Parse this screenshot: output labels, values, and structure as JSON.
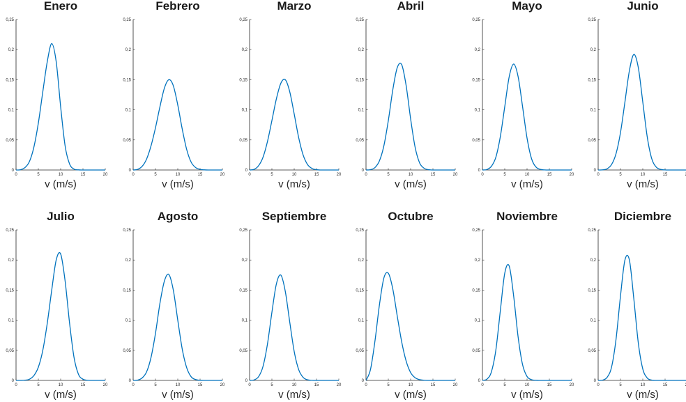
{
  "chart_data": {
    "type": "line",
    "xlabel": "v (m/s)",
    "xlim": [
      0,
      20
    ],
    "ylim": [
      0,
      0.25
    ],
    "x_ticks": [
      0,
      5,
      10,
      15,
      20
    ],
    "y_ticks": [
      0,
      0.05,
      0.1,
      0.15,
      0.2,
      0.25
    ],
    "y_tick_labels": [
      "0",
      "0,05",
      "0,1",
      "0,15",
      "0,2",
      "0,25"
    ],
    "line_color": "#0072BD",
    "grid": false,
    "legend": "none",
    "x": [
      0,
      1,
      2,
      3,
      4,
      5,
      6,
      7,
      8,
      9,
      10,
      11,
      12,
      13,
      14,
      15,
      16,
      17,
      18,
      19,
      20
    ],
    "panels": [
      {
        "title": "Enero",
        "values": [
          0,
          0.0005,
          0.004,
          0.014,
          0.038,
          0.078,
          0.13,
          0.18,
          0.21,
          0.18,
          0.105,
          0.04,
          0.01,
          0.0015,
          0.0002,
          0,
          0,
          0,
          0,
          0,
          0
        ]
      },
      {
        "title": "Febrero",
        "values": [
          0,
          0.001,
          0.006,
          0.018,
          0.04,
          0.07,
          0.105,
          0.136,
          0.15,
          0.14,
          0.108,
          0.068,
          0.034,
          0.013,
          0.004,
          0.001,
          0.0002,
          0,
          0,
          0,
          0
        ]
      },
      {
        "title": "Marzo",
        "values": [
          0,
          0.001,
          0.007,
          0.021,
          0.047,
          0.082,
          0.118,
          0.144,
          0.15,
          0.13,
          0.093,
          0.054,
          0.025,
          0.009,
          0.0025,
          0.0005,
          0,
          0,
          0,
          0,
          0
        ]
      },
      {
        "title": "Abril",
        "values": [
          0,
          0.0006,
          0.004,
          0.015,
          0.04,
          0.082,
          0.133,
          0.17,
          0.175,
          0.14,
          0.085,
          0.038,
          0.012,
          0.003,
          0.0005,
          0,
          0,
          0,
          0,
          0,
          0
        ]
      },
      {
        "title": "Mayo",
        "values": [
          0,
          0.0008,
          0.006,
          0.021,
          0.055,
          0.105,
          0.155,
          0.176,
          0.155,
          0.105,
          0.053,
          0.019,
          0.005,
          0.001,
          0.0001,
          0,
          0,
          0,
          0,
          0,
          0
        ]
      },
      {
        "title": "Junio",
        "values": [
          0,
          0.0003,
          0.002,
          0.009,
          0.027,
          0.062,
          0.113,
          0.165,
          0.192,
          0.17,
          0.113,
          0.055,
          0.019,
          0.005,
          0.001,
          0.0001,
          0,
          0,
          0,
          0,
          0
        ]
      },
      {
        "title": "Julio",
        "values": [
          0,
          0,
          0.0004,
          0.002,
          0.008,
          0.022,
          0.05,
          0.095,
          0.15,
          0.2,
          0.21,
          0.165,
          0.095,
          0.038,
          0.01,
          0.002,
          0.0003,
          0,
          0,
          0,
          0
        ]
      },
      {
        "title": "Agosto",
        "values": [
          0,
          0.0005,
          0.004,
          0.014,
          0.038,
          0.078,
          0.128,
          0.165,
          0.176,
          0.15,
          0.1,
          0.052,
          0.021,
          0.006,
          0.0014,
          0.0002,
          0,
          0,
          0,
          0,
          0
        ]
      },
      {
        "title": "Septiembre",
        "values": [
          0,
          0.0008,
          0.006,
          0.023,
          0.06,
          0.113,
          0.16,
          0.175,
          0.148,
          0.097,
          0.048,
          0.018,
          0.005,
          0.001,
          0.0001,
          0,
          0,
          0,
          0,
          0,
          0
        ]
      },
      {
        "title": "Octubre",
        "values": [
          0,
          0.018,
          0.065,
          0.125,
          0.17,
          0.178,
          0.152,
          0.107,
          0.064,
          0.032,
          0.013,
          0.0045,
          0.0013,
          0.0003,
          0,
          0,
          0,
          0,
          0,
          0,
          0
        ]
      },
      {
        "title": "Noviembre",
        "values": [
          0,
          0.002,
          0.014,
          0.05,
          0.115,
          0.178,
          0.19,
          0.14,
          0.072,
          0.026,
          0.0065,
          0.0012,
          0.0002,
          0,
          0,
          0,
          0,
          0,
          0,
          0,
          0
        ]
      },
      {
        "title": "Diciembre",
        "values": [
          0,
          0.0005,
          0.005,
          0.022,
          0.068,
          0.14,
          0.2,
          0.2,
          0.135,
          0.062,
          0.019,
          0.004,
          0.0005,
          0,
          0,
          0,
          0,
          0,
          0,
          0,
          0
        ]
      }
    ]
  }
}
